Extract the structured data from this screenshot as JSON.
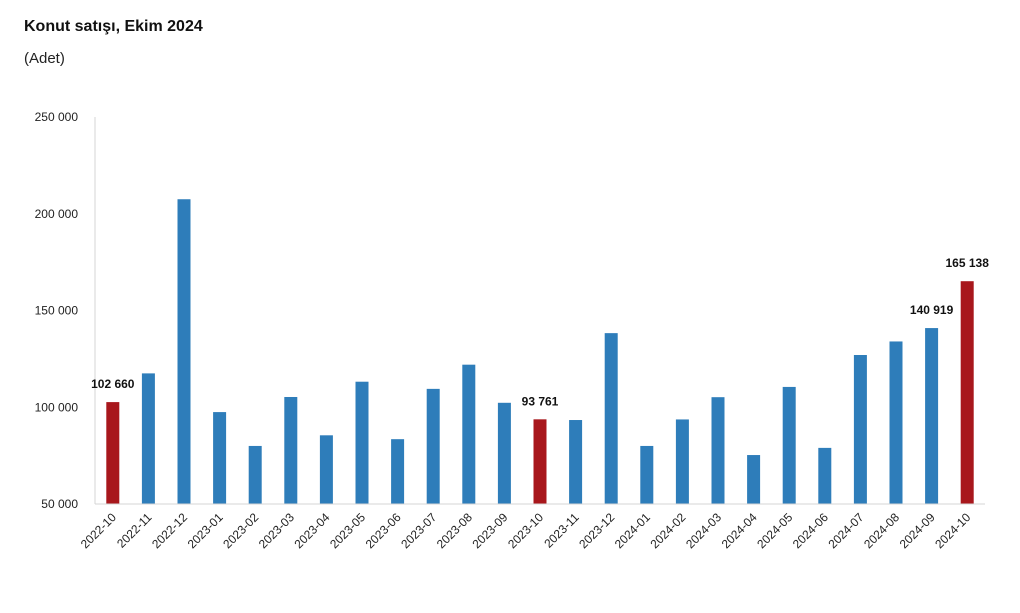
{
  "chart_data": {
    "type": "bar",
    "title": "Konut satışı, Ekim 2024",
    "subtitle": "(Adet)",
    "xlabel": "",
    "ylabel": "",
    "ylim": [
      50000,
      250000
    ],
    "yticks": [
      50000,
      100000,
      150000,
      200000,
      250000
    ],
    "ytick_labels": [
      "50 000",
      "100 000",
      "150 000",
      "200 000",
      "250 000"
    ],
    "grid": false,
    "colors": {
      "default": "#2E7DBA",
      "highlight": "#A8171C"
    },
    "categories": [
      "2022-10",
      "2022-11",
      "2022-12",
      "2023-01",
      "2023-02",
      "2023-03",
      "2023-04",
      "2023-05",
      "2023-06",
      "2023-07",
      "2023-08",
      "2023-09",
      "2023-10",
      "2023-11",
      "2023-12",
      "2024-01",
      "2024-02",
      "2024-03",
      "2024-04",
      "2024-05",
      "2024-06",
      "2024-07",
      "2024-08",
      "2024-09",
      "2024-10"
    ],
    "values": [
      102660,
      117500,
      207500,
      97500,
      80000,
      105300,
      85500,
      113200,
      83500,
      109500,
      122000,
      102300,
      93761,
      93400,
      138300,
      80000,
      93700,
      105200,
      75300,
      110500,
      79000,
      127000,
      134000,
      140919,
      165138
    ],
    "highlight": [
      true,
      false,
      false,
      false,
      false,
      false,
      false,
      false,
      false,
      false,
      false,
      false,
      true,
      false,
      false,
      false,
      false,
      false,
      false,
      false,
      false,
      false,
      false,
      false,
      true
    ],
    "data_labels": [
      "102 660",
      "",
      "",
      "",
      "",
      "",
      "",
      "",
      "",
      "",
      "",
      "",
      "93 761",
      "",
      "",
      "",
      "",
      "",
      "",
      "",
      "",
      "",
      "",
      "140 919",
      "165 138"
    ]
  }
}
